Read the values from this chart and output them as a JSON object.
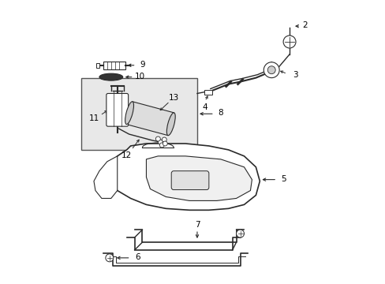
{
  "background_color": "#ffffff",
  "line_color": "#2a2a2a",
  "label_color": "#000000",
  "box_fill": "#e8e8e8",
  "figsize": [
    4.89,
    3.6
  ],
  "dpi": 100
}
